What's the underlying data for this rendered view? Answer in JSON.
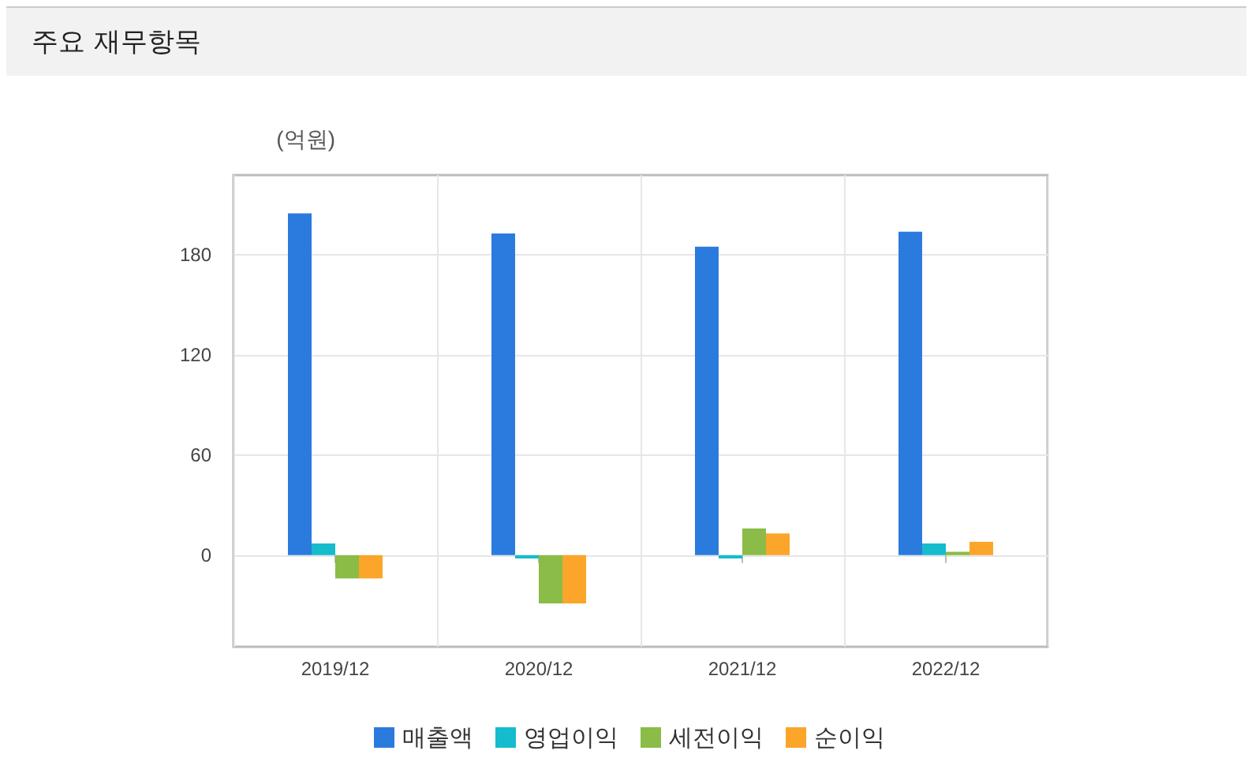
{
  "chart_data": {
    "type": "bar",
    "title": "주요 재무항목",
    "ylabel": "(억원)",
    "categories": [
      "2019/12",
      "2020/12",
      "2021/12",
      "2022/12"
    ],
    "series": [
      {
        "name": "매출액",
        "color": "#2b7bde",
        "values": [
          205,
          193,
          185,
          194
        ]
      },
      {
        "name": "영업이익",
        "color": "#15bccd",
        "values": [
          7,
          -2,
          -2,
          7
        ]
      },
      {
        "name": "세전이익",
        "color": "#8bbc47",
        "values": [
          -14,
          -29,
          16,
          2
        ]
      },
      {
        "name": "순이익",
        "color": "#fba52b",
        "values": [
          -14,
          -29,
          13,
          8
        ]
      }
    ],
    "ylim": [
      -55,
      228
    ],
    "yticks": [
      0,
      60,
      120,
      180
    ],
    "grid": true,
    "legend": "bottom"
  }
}
